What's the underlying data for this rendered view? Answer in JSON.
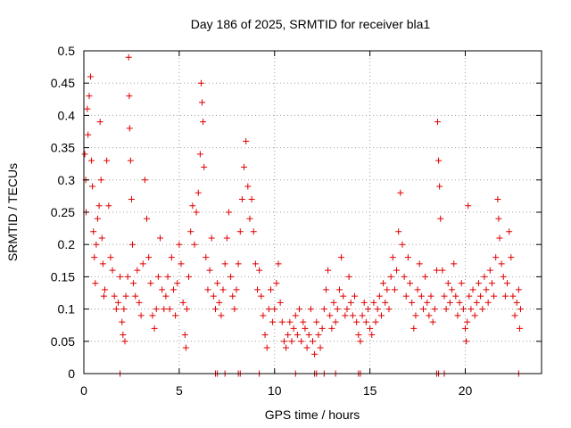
{
  "chart_data": {
    "type": "scatter",
    "title": "Day 186 of 2025, SRMTID for receiver bla1",
    "xlabel": "GPS time / hours",
    "ylabel": "SRMTID / TECUs",
    "xlim": [
      0,
      24
    ],
    "ylim": [
      0,
      0.5
    ],
    "x_ticks": [
      0,
      5,
      10,
      15,
      20
    ],
    "y_ticks": [
      0,
      0.05,
      0.1,
      0.15,
      0.2,
      0.25,
      0.3,
      0.35,
      0.4,
      0.45,
      0.5
    ],
    "x_tick_labels": [
      "0",
      "5",
      "10",
      "15",
      "20"
    ],
    "y_tick_labels": [
      "0",
      "0.05",
      "0.1",
      "0.15",
      "0.2",
      "0.25",
      "0.3",
      "0.35",
      "0.4",
      "0.45",
      "0.5"
    ],
    "grid": true,
    "marker": "plus",
    "marker_color": "#e00000",
    "series": [
      {
        "name": "SRMTID",
        "points": [
          [
            0.05,
            0.34
          ],
          [
            0.1,
            0.3
          ],
          [
            0.12,
            0.25
          ],
          [
            0.18,
            0.41
          ],
          [
            0.22,
            0.37
          ],
          [
            0.28,
            0.43
          ],
          [
            0.35,
            0.46
          ],
          [
            0.4,
            0.33
          ],
          [
            0.45,
            0.29
          ],
          [
            0.5,
            0.22
          ],
          [
            0.55,
            0.18
          ],
          [
            0.6,
            0.14
          ],
          [
            0.65,
            0.2
          ],
          [
            0.72,
            0.24
          ],
          [
            0.8,
            0.26
          ],
          [
            0.85,
            0.39
          ],
          [
            0.9,
            0.3
          ],
          [
            0.95,
            0.21
          ],
          [
            1.0,
            0.17
          ],
          [
            1.05,
            0.12
          ],
          [
            1.1,
            0.13
          ],
          [
            1.2,
            0.33
          ],
          [
            1.3,
            0.26
          ],
          [
            1.4,
            0.18
          ],
          [
            1.5,
            0.16
          ],
          [
            1.6,
            0.12
          ],
          [
            1.7,
            0.1
          ],
          [
            1.8,
            0.11
          ],
          [
            1.9,
            0.15
          ],
          [
            2.0,
            0.08
          ],
          [
            2.05,
            0.06
          ],
          [
            2.1,
            0.1
          ],
          [
            2.15,
            0.05
          ],
          [
            2.2,
            0.12
          ],
          [
            2.3,
            0.15
          ],
          [
            2.35,
            0.49
          ],
          [
            2.38,
            0.43
          ],
          [
            2.4,
            0.38
          ],
          [
            2.45,
            0.33
          ],
          [
            2.5,
            0.27
          ],
          [
            2.55,
            0.2
          ],
          [
            2.6,
            0.14
          ],
          [
            2.7,
            0.12
          ],
          [
            2.8,
            0.16
          ],
          [
            2.9,
            0.11
          ],
          [
            3.0,
            0.09
          ],
          [
            3.1,
            0.17
          ],
          [
            3.2,
            0.3
          ],
          [
            3.3,
            0.24
          ],
          [
            3.4,
            0.18
          ],
          [
            3.5,
            0.14
          ],
          [
            3.6,
            0.09
          ],
          [
            3.7,
            0.07
          ],
          [
            3.8,
            0.1
          ],
          [
            3.9,
            0.15
          ],
          [
            4.0,
            0.21
          ],
          [
            4.1,
            0.13
          ],
          [
            4.2,
            0.1
          ],
          [
            4.3,
            0.12
          ],
          [
            4.4,
            0.15
          ],
          [
            4.5,
            0.1
          ],
          [
            4.6,
            0.18
          ],
          [
            4.7,
            0.13
          ],
          [
            4.8,
            0.09
          ],
          [
            4.9,
            0.14
          ],
          [
            5.0,
            0.2
          ],
          [
            5.1,
            0.17
          ],
          [
            5.2,
            0.11
          ],
          [
            5.3,
            0.06
          ],
          [
            5.35,
            0.04
          ],
          [
            5.4,
            0.1
          ],
          [
            5.5,
            0.15
          ],
          [
            5.6,
            0.22
          ],
          [
            5.7,
            0.26
          ],
          [
            5.8,
            0.2
          ],
          [
            5.9,
            0.25
          ],
          [
            6.0,
            0.28
          ],
          [
            6.1,
            0.34
          ],
          [
            6.15,
            0.45
          ],
          [
            6.2,
            0.42
          ],
          [
            6.25,
            0.39
          ],
          [
            6.3,
            0.32
          ],
          [
            6.4,
            0.18
          ],
          [
            6.5,
            0.13
          ],
          [
            6.6,
            0.16
          ],
          [
            6.7,
            0.21
          ],
          [
            6.8,
            0.12
          ],
          [
            6.9,
            0.1
          ],
          [
            7.0,
            0.14
          ],
          [
            7.1,
            0.11
          ],
          [
            7.2,
            0.09
          ],
          [
            7.3,
            0.13
          ],
          [
            7.4,
            0.17
          ],
          [
            7.5,
            0.21
          ],
          [
            7.6,
            0.25
          ],
          [
            7.7,
            0.15
          ],
          [
            7.8,
            0.12
          ],
          [
            7.9,
            0.1
          ],
          [
            8.0,
            0.13
          ],
          [
            8.1,
            0.17
          ],
          [
            8.2,
            0.22
          ],
          [
            8.3,
            0.27
          ],
          [
            8.4,
            0.32
          ],
          [
            8.5,
            0.36
          ],
          [
            8.6,
            0.29
          ],
          [
            8.7,
            0.24
          ],
          [
            8.8,
            0.27
          ],
          [
            8.9,
            0.22
          ],
          [
            9.0,
            0.17
          ],
          [
            9.1,
            0.13
          ],
          [
            9.2,
            0.16
          ],
          [
            9.3,
            0.12
          ],
          [
            9.4,
            0.09
          ],
          [
            9.5,
            0.06
          ],
          [
            9.6,
            0.04
          ],
          [
            9.7,
            0.1
          ],
          [
            9.8,
            0.13
          ],
          [
            9.9,
            0.08
          ],
          [
            10.0,
            0.1
          ],
          [
            10.1,
            0.14
          ],
          [
            10.2,
            0.17
          ],
          [
            10.3,
            0.11
          ],
          [
            10.4,
            0.08
          ],
          [
            10.5,
            0.05
          ],
          [
            10.6,
            0.04
          ],
          [
            10.7,
            0.06
          ],
          [
            10.8,
            0.08
          ],
          [
            10.9,
            0.05
          ],
          [
            11.0,
            0.07
          ],
          [
            11.1,
            0.09
          ],
          [
            11.2,
            0.06
          ],
          [
            11.3,
            0.1
          ],
          [
            11.4,
            0.05
          ],
          [
            11.5,
            0.08
          ],
          [
            11.6,
            0.07
          ],
          [
            11.7,
            0.04
          ],
          [
            11.8,
            0.06
          ],
          [
            11.9,
            0.1
          ],
          [
            12.0,
            0.05
          ],
          [
            12.1,
            0.03
          ],
          [
            12.2,
            0.08
          ],
          [
            12.3,
            0.06
          ],
          [
            12.4,
            0.04
          ],
          [
            12.5,
            0.07
          ],
          [
            12.6,
            0.1
          ],
          [
            12.7,
            0.13
          ],
          [
            12.8,
            0.16
          ],
          [
            12.9,
            0.09
          ],
          [
            13.0,
            0.07
          ],
          [
            13.1,
            0.11
          ],
          [
            13.2,
            0.08
          ],
          [
            13.3,
            0.1
          ],
          [
            13.4,
            0.13
          ],
          [
            13.5,
            0.18
          ],
          [
            13.6,
            0.12
          ],
          [
            13.7,
            0.09
          ],
          [
            13.8,
            0.1
          ],
          [
            13.9,
            0.15
          ],
          [
            14.0,
            0.11
          ],
          [
            14.1,
            0.09
          ],
          [
            14.2,
            0.12
          ],
          [
            14.3,
            0.08
          ],
          [
            14.4,
            0.06
          ],
          [
            14.5,
            0.05
          ],
          [
            14.6,
            0.09
          ],
          [
            14.7,
            0.11
          ],
          [
            14.8,
            0.08
          ],
          [
            14.9,
            0.1
          ],
          [
            15.0,
            0.07
          ],
          [
            15.1,
            0.06
          ],
          [
            15.2,
            0.11
          ],
          [
            15.3,
            0.08
          ],
          [
            15.4,
            0.1
          ],
          [
            15.5,
            0.12
          ],
          [
            15.6,
            0.09
          ],
          [
            15.7,
            0.14
          ],
          [
            15.8,
            0.11
          ],
          [
            15.9,
            0.13
          ],
          [
            16.0,
            0.1
          ],
          [
            16.1,
            0.15
          ],
          [
            16.2,
            0.18
          ],
          [
            16.3,
            0.13
          ],
          [
            16.4,
            0.16
          ],
          [
            16.5,
            0.22
          ],
          [
            16.6,
            0.28
          ],
          [
            16.7,
            0.2
          ],
          [
            16.8,
            0.15
          ],
          [
            16.9,
            0.12
          ],
          [
            17.0,
            0.18
          ],
          [
            17.1,
            0.14
          ],
          [
            17.2,
            0.11
          ],
          [
            17.3,
            0.07
          ],
          [
            17.4,
            0.09
          ],
          [
            17.5,
            0.13
          ],
          [
            17.6,
            0.17
          ],
          [
            17.7,
            0.12
          ],
          [
            17.8,
            0.1
          ],
          [
            17.9,
            0.15
          ],
          [
            18.0,
            0.11
          ],
          [
            18.1,
            0.09
          ],
          [
            18.2,
            0.12
          ],
          [
            18.3,
            0.08
          ],
          [
            18.4,
            0.1
          ],
          [
            18.5,
            0.16
          ],
          [
            18.55,
            0.39
          ],
          [
            18.6,
            0.33
          ],
          [
            18.65,
            0.29
          ],
          [
            18.7,
            0.24
          ],
          [
            18.8,
            0.16
          ],
          [
            18.9,
            0.12
          ],
          [
            19.0,
            0.1
          ],
          [
            19.1,
            0.14
          ],
          [
            19.2,
            0.11
          ],
          [
            19.3,
            0.13
          ],
          [
            19.4,
            0.17
          ],
          [
            19.5,
            0.12
          ],
          [
            19.6,
            0.09
          ],
          [
            19.7,
            0.11
          ],
          [
            19.8,
            0.14
          ],
          [
            19.9,
            0.1
          ],
          [
            20.0,
            0.07
          ],
          [
            20.05,
            0.05
          ],
          [
            20.1,
            0.08
          ],
          [
            20.15,
            0.26
          ],
          [
            20.2,
            0.12
          ],
          [
            20.3,
            0.1
          ],
          [
            20.4,
            0.13
          ],
          [
            20.5,
            0.09
          ],
          [
            20.6,
            0.11
          ],
          [
            20.7,
            0.14
          ],
          [
            20.8,
            0.12
          ],
          [
            20.9,
            0.1
          ],
          [
            21.0,
            0.15
          ],
          [
            21.1,
            0.13
          ],
          [
            21.2,
            0.11
          ],
          [
            21.3,
            0.16
          ],
          [
            21.4,
            0.14
          ],
          [
            21.5,
            0.12
          ],
          [
            21.6,
            0.18
          ],
          [
            21.7,
            0.27
          ],
          [
            21.75,
            0.24
          ],
          [
            21.8,
            0.21
          ],
          [
            21.9,
            0.17
          ],
          [
            22.0,
            0.15
          ],
          [
            22.1,
            0.12
          ],
          [
            22.2,
            0.14
          ],
          [
            22.3,
            0.22
          ],
          [
            22.4,
            0.18
          ],
          [
            22.5,
            0.12
          ],
          [
            22.6,
            0.09
          ],
          [
            22.7,
            0.11
          ],
          [
            22.8,
            0.13
          ],
          [
            22.85,
            0.07
          ],
          [
            22.9,
            0.1
          ]
        ]
      }
    ],
    "zero_points_x": [
      1.9,
      6.9,
      7.0,
      7.4,
      8.1,
      8.2,
      9.2,
      11.1,
      12.1,
      12.2,
      12.6,
      13.2,
      14.4,
      14.5,
      18.5,
      18.6,
      18.9,
      22.8
    ]
  }
}
